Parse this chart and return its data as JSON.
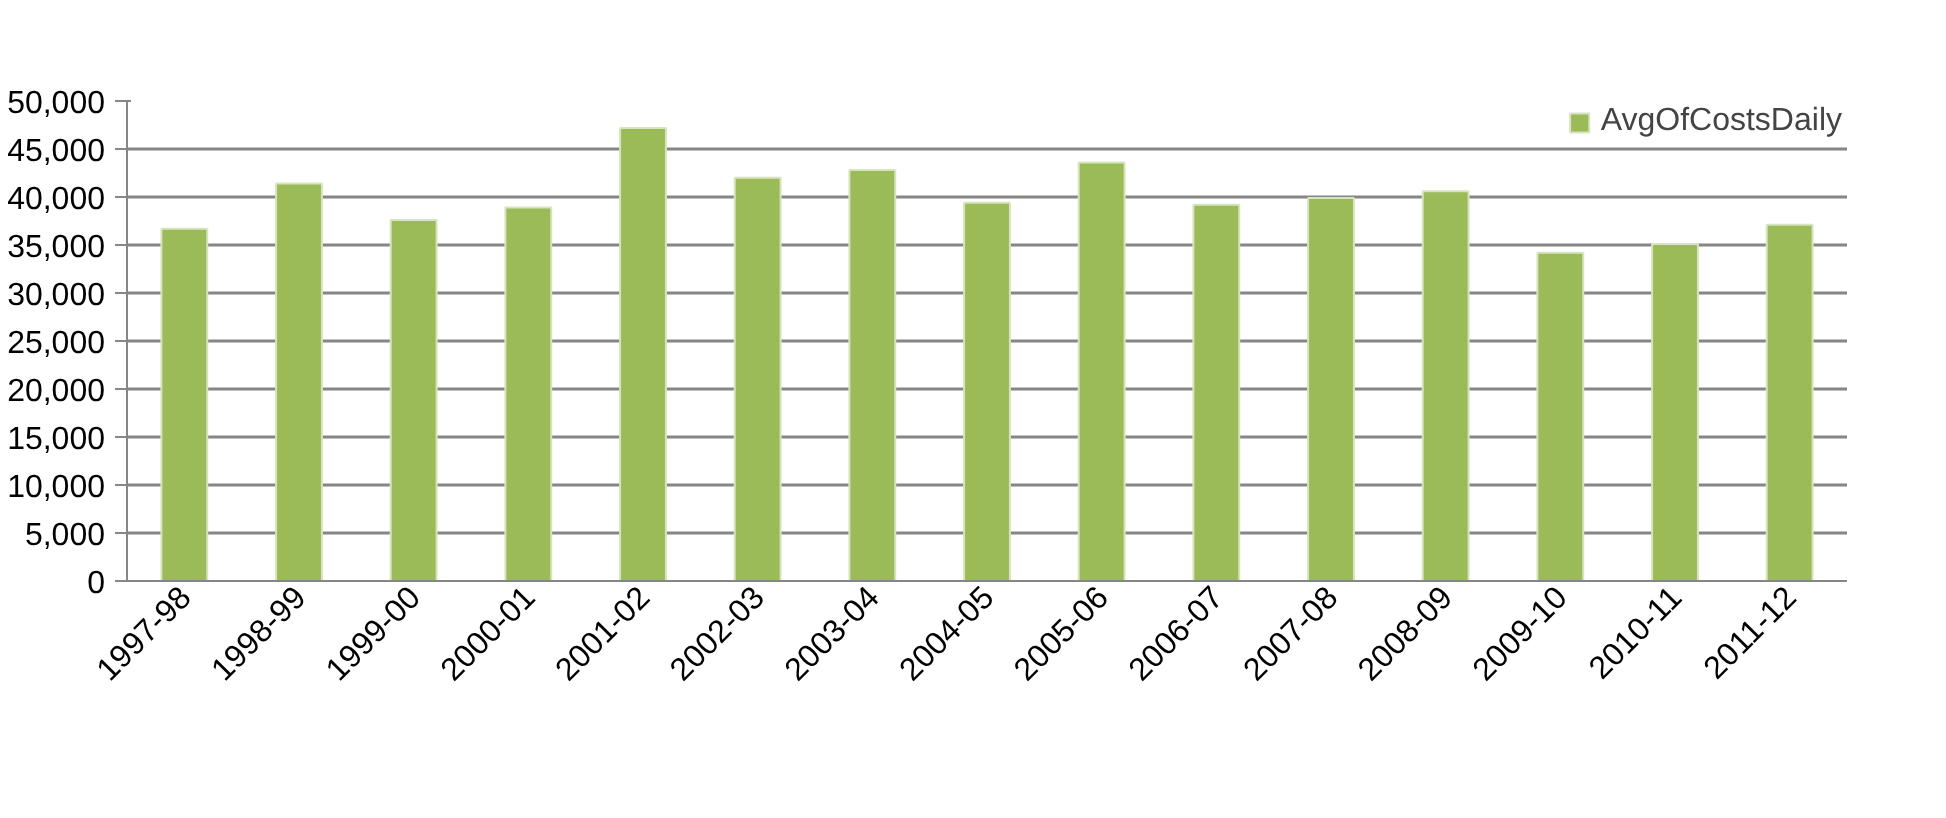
{
  "chart_data": {
    "type": "bar",
    "categories": [
      "1997-98",
      "1998-99",
      "1999-00",
      "2000-01",
      "2001-02",
      "2002-03",
      "2003-04",
      "2004-05",
      "2005-06",
      "2006-07",
      "2007-08",
      "2008-09",
      "2009-10",
      "2010-11",
      "2011-12"
    ],
    "series": [
      {
        "name": "AvgOfCostsDaily",
        "color": "#9bbb59",
        "values": [
          36700,
          41400,
          37600,
          38900,
          47200,
          42000,
          42800,
          39400,
          43600,
          39200,
          39900,
          40600,
          34200,
          35100,
          37100
        ]
      }
    ],
    "ylim": [
      0,
      50000
    ],
    "yticks": [
      {
        "value": 0,
        "label": "0"
      },
      {
        "value": 5000,
        "label": "5,000"
      },
      {
        "value": 10000,
        "label": "10,000"
      },
      {
        "value": 15000,
        "label": "15,000"
      },
      {
        "value": 20000,
        "label": "20,000"
      },
      {
        "value": 25000,
        "label": "25,000"
      },
      {
        "value": 30000,
        "label": "30,000"
      },
      {
        "value": 35000,
        "label": "35,000"
      },
      {
        "value": 40000,
        "label": "40,000"
      },
      {
        "value": 45000,
        "label": "45,000"
      },
      {
        "value": 50000,
        "label": "50,000"
      }
    ],
    "grid": "y",
    "legend": "top right"
  }
}
